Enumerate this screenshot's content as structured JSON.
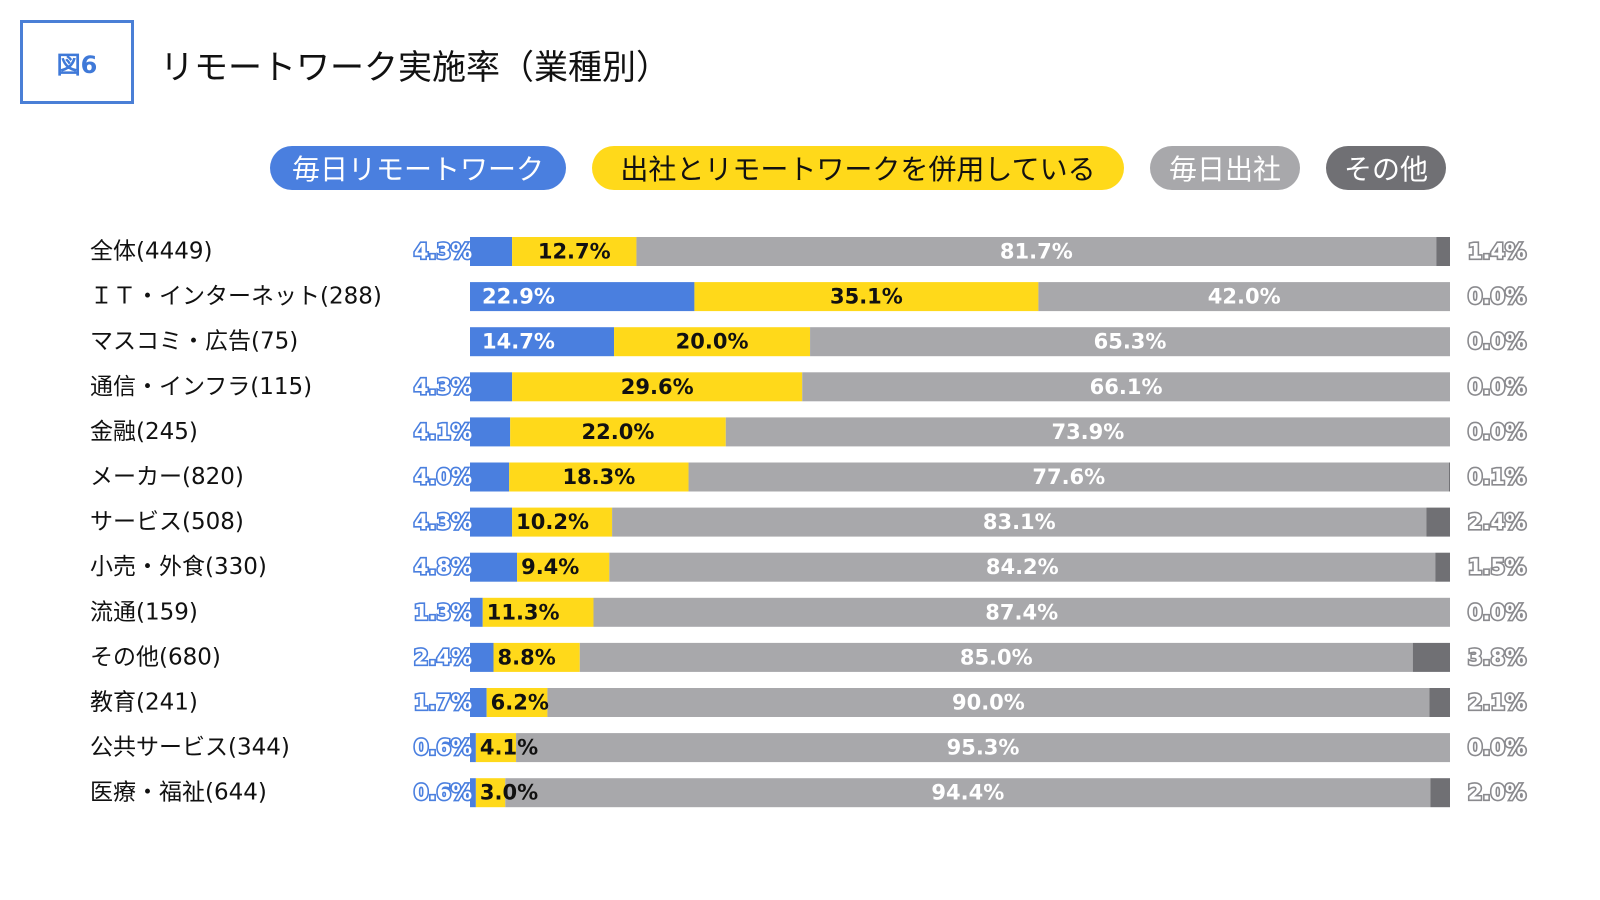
{
  "figure_label": "図6",
  "title": "リモートワーク実施率（業種別）",
  "legend": [
    {
      "label": "毎日リモートワーク",
      "color": "#4a7fdf",
      "text_color": "#ffffff"
    },
    {
      "label": "出社とリモートワークを併用している",
      "color": "#ffd91a",
      "text_color": "#111111"
    },
    {
      "label": "毎日出社",
      "color": "#a8a8ab",
      "text_color": "#ffffff"
    },
    {
      "label": "その他",
      "color": "#707074",
      "text_color": "#ffffff"
    }
  ],
  "chart_data": {
    "type": "bar",
    "orientation": "horizontal",
    "stacked": true,
    "normalized_100": true,
    "categories": [
      "全体(4449)",
      "ＩＴ・インターネット(288)",
      "マスコミ・広告(75)",
      "通信・インフラ(115)",
      "金融(245)",
      "メーカー(820)",
      "サービス(508)",
      "小売・外食(330)",
      "流通(159)",
      "その他(680)",
      "教育(241)",
      "公共サービス(344)",
      "医療・福祉(644)"
    ],
    "series": [
      {
        "name": "毎日リモートワーク",
        "color": "#4a7fdf",
        "values": [
          4.3,
          22.9,
          14.7,
          4.3,
          4.1,
          4.0,
          4.3,
          4.8,
          1.3,
          2.4,
          1.7,
          0.6,
          0.6
        ],
        "labels": [
          "4.3%",
          "22.9%",
          "14.7%",
          "4.3%",
          "4.1%",
          "4.0%",
          "4.3%",
          "4.8%",
          "1.3%",
          "2.4%",
          "1.7%",
          "0.6%",
          "0.6%"
        ]
      },
      {
        "name": "出社とリモートワークを併用している",
        "color": "#ffd91a",
        "values": [
          12.7,
          35.1,
          20.0,
          29.6,
          22.0,
          18.3,
          10.2,
          9.4,
          11.3,
          8.8,
          6.2,
          4.1,
          3.0
        ],
        "labels": [
          "12.7%",
          "35.1%",
          "20.0%",
          "29.6%",
          "22.0%",
          "18.3%",
          "10.2%",
          "9.4%",
          "11.3%",
          "8.8%",
          "6.2%",
          "4.1%",
          "3.0%"
        ]
      },
      {
        "name": "毎日出社",
        "color": "#a8a8ab",
        "values": [
          81.7,
          42.0,
          65.3,
          66.1,
          73.9,
          77.6,
          83.1,
          84.2,
          87.4,
          85.0,
          90.0,
          95.3,
          94.4
        ],
        "labels": [
          "81.7%",
          "42.0%",
          "65.3%",
          "66.1%",
          "73.9%",
          "77.6%",
          "83.1%",
          "84.2%",
          "87.4%",
          "85.0%",
          "90.0%",
          "95.3%",
          "94.4%"
        ]
      },
      {
        "name": "その他",
        "color": "#707074",
        "values": [
          1.4,
          0.0,
          0.0,
          0.0,
          0.0,
          0.1,
          2.4,
          1.5,
          0.0,
          3.8,
          2.1,
          0.0,
          2.0
        ],
        "labels": [
          "1.4%",
          "0.0%",
          "0.0%",
          "0.0%",
          "0.0%",
          "0.1%",
          "2.4%",
          "1.5%",
          "0.0%",
          "3.8%",
          "2.1%",
          "0.0%",
          "2.0%"
        ]
      }
    ],
    "xlim": [
      0,
      100
    ],
    "grid": false,
    "legend_position": "top"
  }
}
